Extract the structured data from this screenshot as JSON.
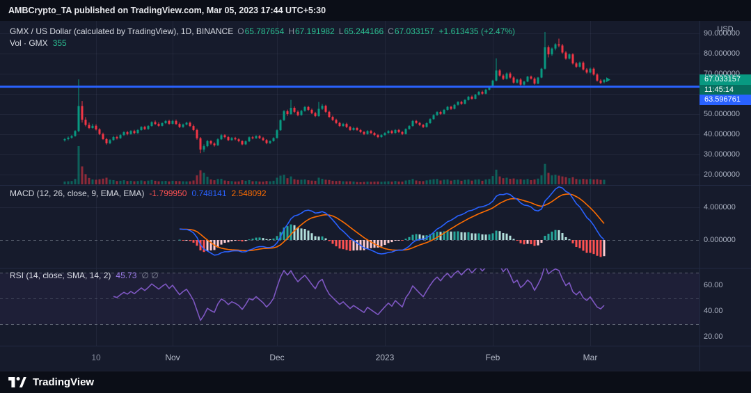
{
  "header": {
    "text": "AMBCrypto_TA published on TradingView.com, Mar 05, 2023 17:44 UTC+5:30"
  },
  "footer": {
    "brand": "TradingView"
  },
  "price_pane": {
    "legend": {
      "symbol": "GMX / US Dollar (calculated by TradingView), 1D, BINANCE",
      "ohlc": {
        "o_k": "O",
        "o_v": "65.787654",
        "h_k": "H",
        "h_v": "67.191982",
        "l_k": "L",
        "l_v": "65.244166",
        "c_k": "C",
        "c_v": "67.033157"
      },
      "change": "+1.613435 (+2.47%)",
      "vol_label": "Vol · GMX",
      "vol_value": "355"
    },
    "axis": {
      "currency": "USD"
    },
    "badges": {
      "last_price": "67.033157",
      "countdown": "11:45:14",
      "level": "63.596761"
    }
  },
  "macd_pane": {
    "legend": {
      "title": "MACD (12, 26, close, 9, EMA, EMA)",
      "hist": "-1.799950",
      "macd": "0.748141",
      "signal": "2.548092"
    }
  },
  "rsi_pane": {
    "legend": {
      "title": "RSI (14, close, SMA, 14, 2)",
      "value": "45.73",
      "extra": "∅ ∅"
    }
  },
  "time_axis": {
    "ticks": [
      {
        "i": 9,
        "label": "10",
        "minor": true
      },
      {
        "i": 31,
        "label": "Nov",
        "minor": false
      },
      {
        "i": 61,
        "label": "Dec",
        "minor": false
      },
      {
        "i": 92,
        "label": "2023",
        "minor": false
      },
      {
        "i": 123,
        "label": "Feb",
        "minor": false
      },
      {
        "i": 151,
        "label": "Mar",
        "minor": false
      }
    ]
  },
  "colors": {
    "background": "#161b2c",
    "toolbar_bg": "#0b0e17",
    "up": "#089981",
    "down": "#f23645",
    "vol_up": "rgba(8,153,129,0.55)",
    "vol_down": "rgba(242,54,69,0.55)",
    "legend_up": "#2abd90",
    "legend_muted": "#8a8f9e",
    "legend_text": "#d7dae2",
    "macd_line": "#2962ff",
    "signal_line": "#ff6d00",
    "hist_grow_above": "#26a69a",
    "hist_fall_above": "#b2dfdb",
    "hist_grow_below": "#ffcdd2",
    "hist_fall_below": "#ff5252",
    "macd_hist_value": "#ff5252",
    "rsi_line": "#7e57c2",
    "rsi_value": "#9b7be8",
    "level_line": "#2962ff",
    "badge_last": "#089981",
    "badge_countdown": "#076e5f",
    "badge_level": "#2962ff",
    "axis_text": "#a9b0c0",
    "grid": "rgba(170,180,220,0.08)",
    "zero_line": "rgba(150,156,170,0.55)",
    "mid_line": "rgba(150,156,170,0.3)",
    "rsi_band": "rgba(126,87,194,0.08)",
    "separator": "#222a42"
  },
  "chart_data": {
    "type": "candlestick",
    "symbol": "GMX / US Dollar",
    "exchange": "BINANCE",
    "interval": "1D",
    "date_start": "2022-10-01",
    "date_end": "2023-03-05",
    "last": {
      "open": 65.787654,
      "high": 67.191982,
      "low": 65.244166,
      "close": 67.033157,
      "change": 1.613435,
      "change_pct": 2.47,
      "volume": 355
    },
    "countdown": "11:45:14",
    "level_line": 63.596761,
    "price_axis": {
      "grid_values": [
        20,
        30,
        40,
        50,
        60,
        70,
        80,
        90
      ],
      "ticks": [
        {
          "value": 90,
          "label": "90.000000"
        },
        {
          "value": 80,
          "label": "80.000000"
        },
        {
          "value": 70,
          "label": "70.000000"
        },
        {
          "value": 50,
          "label": "50.000000"
        },
        {
          "value": 40,
          "label": "40.000000"
        },
        {
          "value": 30,
          "label": "30.000000"
        },
        {
          "value": 20,
          "label": "20.000000"
        }
      ]
    },
    "volume_scale_max": 3000,
    "macd_settings": [
      12,
      26,
      9
    ],
    "macd_values": {
      "histogram": -1.79995,
      "macd": 0.748141,
      "signal": 2.548092
    },
    "macd_axis": {
      "ticks": [
        {
          "value": 4,
          "label": "4.000000"
        },
        {
          "value": 0,
          "label": "0.000000"
        }
      ]
    },
    "rsi_settings": [
      14
    ],
    "rsi_value": 45.73,
    "rsi_axis": {
      "ticks": [
        {
          "value": 60,
          "label": "60.00"
        },
        {
          "value": 40,
          "label": "40.00"
        },
        {
          "value": 20,
          "label": "20.00"
        }
      ],
      "bands": [
        70,
        50,
        30
      ]
    },
    "candles": [
      [
        37.0,
        38.1,
        36.4,
        37.6,
        220
      ],
      [
        37.6,
        38.9,
        37.0,
        38.3,
        240
      ],
      [
        38.3,
        39.6,
        37.8,
        39.1,
        260
      ],
      [
        39.1,
        42.0,
        38.8,
        41.6,
        420
      ],
      [
        41.6,
        67.2,
        41.0,
        54.0,
        3000
      ],
      [
        54.0,
        56.5,
        45.8,
        47.2,
        1400
      ],
      [
        47.2,
        48.5,
        43.9,
        44.6,
        800
      ],
      [
        44.6,
        45.8,
        42.6,
        43.1,
        500
      ],
      [
        43.1,
        45.2,
        42.8,
        44.2,
        380
      ],
      [
        44.2,
        44.9,
        41.9,
        42.4,
        360
      ],
      [
        42.4,
        43.0,
        39.6,
        40.1,
        400
      ],
      [
        40.1,
        40.8,
        37.2,
        37.6,
        450
      ],
      [
        37.6,
        38.2,
        34.9,
        35.5,
        520
      ],
      [
        35.5,
        37.6,
        35.1,
        37.1,
        360
      ],
      [
        37.1,
        39.2,
        36.8,
        38.6,
        330
      ],
      [
        38.6,
        39.3,
        37.4,
        38.0,
        260
      ],
      [
        38.0,
        40.1,
        37.7,
        39.6,
        280
      ],
      [
        39.6,
        41.5,
        39.2,
        41.0,
        320
      ],
      [
        41.0,
        41.7,
        39.5,
        40.1,
        260
      ],
      [
        40.1,
        42.0,
        39.8,
        41.6,
        280
      ],
      [
        41.6,
        42.2,
        40.0,
        40.6,
        240
      ],
      [
        40.6,
        42.5,
        40.2,
        42.1,
        260
      ],
      [
        42.1,
        44.0,
        41.8,
        43.6,
        300
      ],
      [
        43.6,
        44.2,
        42.1,
        42.6,
        250
      ],
      [
        42.6,
        44.5,
        42.2,
        44.1,
        290
      ],
      [
        44.1,
        46.4,
        43.8,
        46.0,
        340
      ],
      [
        46.0,
        46.8,
        44.6,
        45.1,
        280
      ],
      [
        45.1,
        45.9,
        43.7,
        44.2,
        240
      ],
      [
        44.2,
        45.9,
        43.9,
        45.5,
        250
      ],
      [
        45.5,
        47.0,
        45.1,
        46.6,
        270
      ],
      [
        46.6,
        47.2,
        44.7,
        45.2,
        230
      ],
      [
        45.2,
        47.1,
        44.9,
        46.6,
        280
      ],
      [
        46.6,
        47.3,
        44.6,
        45.1,
        260
      ],
      [
        45.1,
        45.8,
        43.1,
        43.6,
        250
      ],
      [
        43.6,
        45.3,
        43.2,
        44.8,
        240
      ],
      [
        44.8,
        46.2,
        44.4,
        45.7,
        230
      ],
      [
        45.7,
        46.3,
        43.6,
        44.1,
        240
      ],
      [
        44.1,
        44.8,
        41.6,
        42.1,
        300
      ],
      [
        42.1,
        42.8,
        37.3,
        38.0,
        700
      ],
      [
        38.0,
        38.6,
        30.6,
        32.4,
        1100
      ],
      [
        32.4,
        35.0,
        31.2,
        34.1,
        900
      ],
      [
        34.1,
        37.2,
        33.6,
        36.6,
        600
      ],
      [
        36.6,
        37.1,
        34.8,
        35.4,
        380
      ],
      [
        35.4,
        36.0,
        33.9,
        34.5,
        320
      ],
      [
        34.5,
        38.0,
        34.2,
        37.5,
        420
      ],
      [
        37.5,
        40.1,
        37.2,
        39.5,
        430
      ],
      [
        39.5,
        40.0,
        38.0,
        38.6,
        300
      ],
      [
        38.6,
        39.1,
        36.6,
        37.1,
        270
      ],
      [
        37.1,
        38.6,
        36.8,
        38.1,
        250
      ],
      [
        38.1,
        38.7,
        37.0,
        37.5,
        220
      ],
      [
        37.5,
        38.0,
        36.1,
        36.6,
        230
      ],
      [
        36.6,
        37.0,
        34.5,
        35.0,
        320
      ],
      [
        35.0,
        36.9,
        34.7,
        36.5,
        280
      ],
      [
        36.5,
        38.9,
        36.2,
        38.5,
        330
      ],
      [
        38.5,
        39.1,
        37.5,
        38.0,
        240
      ],
      [
        38.0,
        39.5,
        37.7,
        39.1,
        250
      ],
      [
        39.1,
        39.6,
        37.6,
        38.1,
        220
      ],
      [
        38.1,
        38.7,
        36.6,
        37.1,
        210
      ],
      [
        37.1,
        37.6,
        35.1,
        35.6,
        260
      ],
      [
        35.6,
        37.0,
        35.2,
        36.6,
        240
      ],
      [
        36.6,
        38.5,
        36.3,
        38.1,
        280
      ],
      [
        38.1,
        42.5,
        37.9,
        42.0,
        520
      ],
      [
        42.0,
        47.4,
        41.7,
        47.0,
        680
      ],
      [
        47.0,
        52.0,
        46.6,
        51.4,
        750
      ],
      [
        51.4,
        52.2,
        49.1,
        50.0,
        480
      ],
      [
        50.0,
        57.0,
        49.6,
        53.1,
        620
      ],
      [
        53.1,
        53.8,
        50.5,
        51.1,
        400
      ],
      [
        51.1,
        51.8,
        48.9,
        49.5,
        350
      ],
      [
        49.5,
        52.1,
        49.2,
        51.6,
        360
      ],
      [
        51.6,
        54.0,
        51.2,
        53.5,
        380
      ],
      [
        53.5,
        54.1,
        51.6,
        52.1,
        320
      ],
      [
        52.1,
        52.7,
        50.0,
        50.5,
        290
      ],
      [
        50.5,
        51.1,
        48.5,
        49.0,
        280
      ],
      [
        49.0,
        56.0,
        48.7,
        52.6,
        520
      ],
      [
        52.6,
        55.0,
        52.1,
        54.1,
        430
      ],
      [
        54.1,
        54.6,
        50.6,
        51.1,
        360
      ],
      [
        51.1,
        51.7,
        48.1,
        48.6,
        340
      ],
      [
        48.6,
        49.2,
        46.6,
        47.1,
        280
      ],
      [
        47.1,
        47.7,
        45.1,
        45.6,
        260
      ],
      [
        45.6,
        46.2,
        43.6,
        44.1,
        280
      ],
      [
        44.1,
        45.6,
        43.7,
        45.1,
        240
      ],
      [
        45.1,
        45.7,
        43.1,
        43.6,
        230
      ],
      [
        43.6,
        44.1,
        41.7,
        42.1,
        240
      ],
      [
        42.1,
        43.6,
        41.8,
        43.1,
        220
      ],
      [
        43.1,
        43.6,
        41.7,
        42.1,
        180
      ],
      [
        42.1,
        42.6,
        40.6,
        41.1,
        170
      ],
      [
        41.1,
        41.6,
        39.6,
        40.1,
        190
      ],
      [
        40.1,
        42.0,
        39.8,
        41.6,
        210
      ],
      [
        41.6,
        42.1,
        40.1,
        40.6,
        200
      ],
      [
        40.6,
        41.1,
        39.1,
        39.6,
        210
      ],
      [
        39.6,
        40.1,
        38.1,
        38.6,
        220
      ],
      [
        38.6,
        40.0,
        38.3,
        39.6,
        200
      ],
      [
        39.6,
        41.0,
        39.3,
        40.6,
        220
      ],
      [
        40.6,
        42.0,
        40.3,
        41.6,
        240
      ],
      [
        41.6,
        42.1,
        40.1,
        40.6,
        210
      ],
      [
        40.6,
        42.5,
        40.3,
        42.1,
        260
      ],
      [
        42.1,
        42.6,
        40.6,
        41.1,
        220
      ],
      [
        41.1,
        41.6,
        39.6,
        40.1,
        210
      ],
      [
        40.1,
        42.9,
        39.9,
        42.6,
        300
      ],
      [
        42.6,
        44.5,
        42.3,
        44.1,
        340
      ],
      [
        44.1,
        47.0,
        43.8,
        46.6,
        420
      ],
      [
        46.6,
        47.1,
        45.1,
        45.6,
        300
      ],
      [
        45.6,
        46.1,
        44.1,
        44.6,
        260
      ],
      [
        44.6,
        45.1,
        43.1,
        43.6,
        250
      ],
      [
        43.6,
        45.9,
        43.3,
        45.5,
        310
      ],
      [
        45.5,
        47.9,
        45.2,
        47.5,
        360
      ],
      [
        47.5,
        49.9,
        47.2,
        49.5,
        400
      ],
      [
        49.5,
        51.4,
        49.1,
        51.0,
        420
      ],
      [
        51.0,
        51.6,
        49.6,
        50.1,
        300
      ],
      [
        50.1,
        52.5,
        49.8,
        52.1,
        360
      ],
      [
        52.1,
        54.0,
        51.7,
        53.6,
        380
      ],
      [
        53.6,
        54.1,
        52.1,
        52.6,
        290
      ],
      [
        52.6,
        55.0,
        52.3,
        54.6,
        340
      ],
      [
        54.6,
        56.4,
        54.2,
        56.0,
        360
      ],
      [
        56.0,
        56.6,
        54.6,
        55.1,
        280
      ],
      [
        55.1,
        57.4,
        54.8,
        57.0,
        350
      ],
      [
        57.0,
        59.0,
        56.7,
        58.6,
        380
      ],
      [
        58.6,
        59.2,
        57.1,
        57.6,
        290
      ],
      [
        57.6,
        60.0,
        57.3,
        59.6,
        370
      ],
      [
        59.6,
        61.4,
        59.2,
        61.0,
        390
      ],
      [
        61.0,
        61.6,
        59.6,
        60.1,
        280
      ],
      [
        60.1,
        62.5,
        59.8,
        62.1,
        380
      ],
      [
        62.1,
        64.0,
        61.7,
        63.6,
        420
      ],
      [
        63.6,
        67.0,
        63.2,
        66.6,
        650
      ],
      [
        66.6,
        77.6,
        66.2,
        71.6,
        1150
      ],
      [
        71.6,
        72.3,
        68.6,
        69.1,
        620
      ],
      [
        69.1,
        69.8,
        66.9,
        67.5,
        480
      ],
      [
        67.5,
        70.6,
        67.1,
        70.1,
        520
      ],
      [
        70.1,
        70.8,
        67.6,
        68.1,
        430
      ],
      [
        68.1,
        68.8,
        65.1,
        65.6,
        460
      ],
      [
        65.6,
        67.5,
        65.2,
        67.1,
        380
      ],
      [
        67.1,
        67.8,
        64.1,
        64.6,
        400
      ],
      [
        64.6,
        66.5,
        64.2,
        66.1,
        360
      ],
      [
        66.1,
        68.9,
        65.8,
        68.6,
        420
      ],
      [
        68.6,
        69.1,
        67.1,
        67.6,
        330
      ],
      [
        67.6,
        68.2,
        64.6,
        65.1,
        380
      ],
      [
        65.1,
        68.4,
        64.8,
        68.1,
        450
      ],
      [
        68.1,
        72.9,
        67.8,
        72.5,
        700
      ],
      [
        72.5,
        90.7,
        72.1,
        83.1,
        1600
      ],
      [
        83.1,
        84.0,
        78.1,
        79.6,
        900
      ],
      [
        79.6,
        83.0,
        78.9,
        82.5,
        700
      ],
      [
        82.5,
        85.1,
        81.6,
        84.6,
        750
      ],
      [
        84.6,
        87.4,
        83.1,
        84.0,
        680
      ],
      [
        84.0,
        84.8,
        79.9,
        80.5,
        620
      ],
      [
        80.5,
        81.2,
        77.0,
        77.5,
        560
      ],
      [
        77.5,
        80.1,
        77.1,
        79.6,
        480
      ],
      [
        79.6,
        80.2,
        74.6,
        75.1,
        560
      ],
      [
        75.1,
        75.8,
        72.9,
        73.5,
        420
      ],
      [
        73.5,
        76.0,
        73.1,
        75.5,
        380
      ],
      [
        75.5,
        76.1,
        71.6,
        72.1,
        430
      ],
      [
        72.1,
        72.8,
        70.1,
        70.6,
        390
      ],
      [
        70.6,
        73.0,
        70.2,
        72.5,
        420
      ],
      [
        72.5,
        73.1,
        69.1,
        69.6,
        380
      ],
      [
        69.6,
        70.2,
        66.1,
        66.6,
        400
      ],
      [
        66.6,
        67.3,
        64.9,
        65.42,
        350
      ],
      [
        65.787654,
        67.191982,
        65.244166,
        67.033157,
        355
      ]
    ]
  }
}
